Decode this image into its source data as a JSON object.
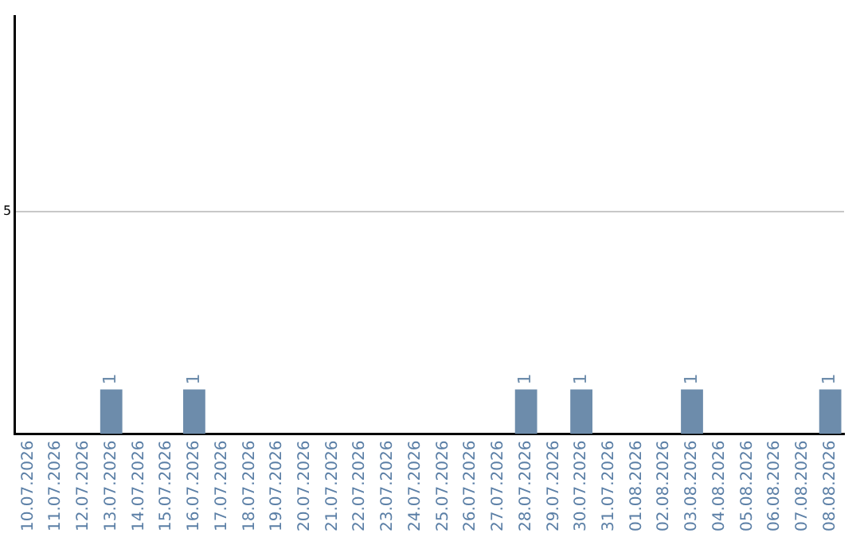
{
  "chart_data": {
    "type": "bar",
    "categories": [
      "10.07.2026",
      "11.07.2026",
      "12.07.2026",
      "13.07.2026",
      "14.07.2026",
      "15.07.2026",
      "16.07.2026",
      "17.07.2026",
      "18.07.2026",
      "19.07.2026",
      "20.07.2026",
      "21.07.2026",
      "22.07.2026",
      "23.07.2026",
      "24.07.2026",
      "25.07.2026",
      "26.07.2026",
      "27.07.2026",
      "28.07.2026",
      "29.07.2026",
      "30.07.2026",
      "31.07.2026",
      "01.08.2026",
      "02.08.2026",
      "03.08.2026",
      "04.08.2026",
      "05.08.2026",
      "06.08.2026",
      "07.08.2026",
      "08.08.2026"
    ],
    "values": [
      0,
      0,
      0,
      1,
      0,
      0,
      1,
      0,
      0,
      0,
      0,
      0,
      0,
      0,
      0,
      0,
      0,
      0,
      1,
      0,
      1,
      0,
      0,
      0,
      1,
      0,
      0,
      0,
      0,
      1
    ],
    "value_labels": [
      null,
      null,
      null,
      "1",
      null,
      null,
      "1",
      null,
      null,
      null,
      null,
      null,
      null,
      null,
      null,
      null,
      null,
      null,
      "1",
      null,
      "1",
      null,
      null,
      null,
      "1",
      null,
      null,
      null,
      null,
      "1"
    ],
    "color": "#6d8cab",
    "ylim": [
      0,
      9.4
    ],
    "yticks": [
      5
    ],
    "grid": "y",
    "legend": false
  }
}
